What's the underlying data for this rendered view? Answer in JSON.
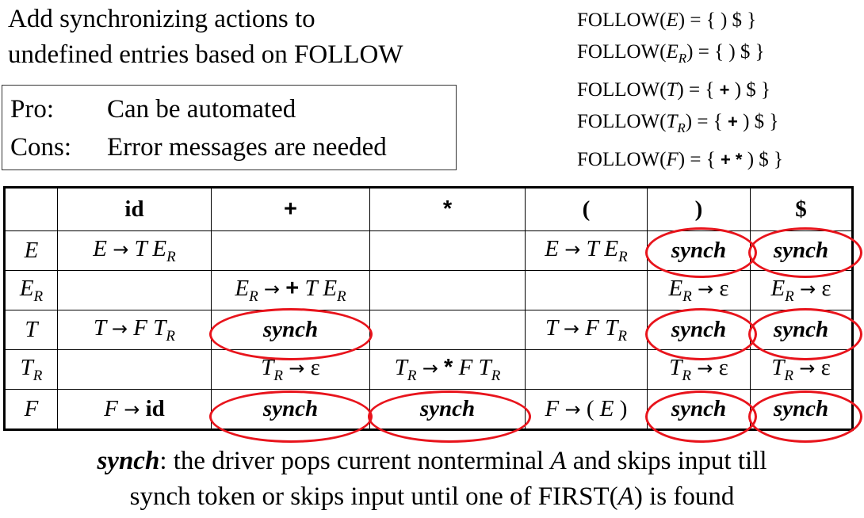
{
  "intro": {
    "line1": "Add synchronizing actions to",
    "line2": "undefined entries based on FOLLOW"
  },
  "procon": {
    "pro_label": "Pro:",
    "pro_text": "Can be automated",
    "cons_label": "Cons:",
    "cons_text": "Error messages are needed"
  },
  "follow": {
    "fn": "FOLLOW",
    "lines": [
      {
        "nt": "E",
        "sub": "",
        "set_open": "{ ",
        "bold": "",
        "rest": ") $ }"
      },
      {
        "nt": "E",
        "sub": "R",
        "set_open": "{ ",
        "bold": "",
        "rest": ") $ }"
      },
      {
        "nt": "T",
        "sub": "",
        "set_open": "{ ",
        "bold": "+",
        "rest": " ) $ }"
      },
      {
        "nt": "T",
        "sub": "R",
        "set_open": "{ ",
        "bold": "+",
        "rest": " ) $ }"
      },
      {
        "nt": "F",
        "sub": "",
        "set_open": "{ ",
        "bold": "+ *",
        "rest": " ) $ }"
      }
    ]
  },
  "table": {
    "headers": [
      "",
      "id",
      "+",
      "*",
      "(",
      ")",
      "$"
    ],
    "rows": [
      {
        "nt": "E",
        "sub": ""
      },
      {
        "nt": "E",
        "sub": "R"
      },
      {
        "nt": "T",
        "sub": ""
      },
      {
        "nt": "T",
        "sub": "R"
      },
      {
        "nt": "F",
        "sub": ""
      }
    ],
    "synch": "synch",
    "arrow": "→",
    "epsilon": "ε",
    "sym_id": "id",
    "sym_plus": "+",
    "sym_star": "*",
    "sym_lparen": "(",
    "sym_rparen": ")",
    "E": "E",
    "T": "T",
    "F": "F",
    "R": "R"
  },
  "annotation": {
    "highlight_color": "#e8141c"
  },
  "footer": {
    "keyword": "synch",
    "text1": ": the driver pops current nonterminal ",
    "var": "A",
    "text2": " and skips input till",
    "line2a": "synch token or skips input until one of FIRST(",
    "line2var": "A",
    "line2b": ") is found"
  }
}
